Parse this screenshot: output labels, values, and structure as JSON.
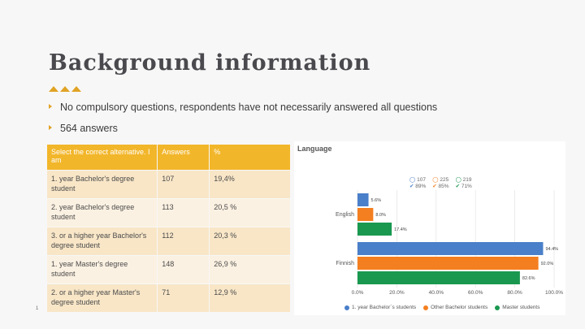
{
  "slide": {
    "title": "Background information",
    "bullets": [
      "No compulsory questions, respondents have not necessarily answered all questions",
      "564 answers"
    ],
    "page_number": "1"
  },
  "table": {
    "headers": [
      "Select the correct alternative. I am",
      "Answers",
      "%"
    ],
    "rows": [
      [
        "1. year Bachelor's degree student",
        "107",
        "19,4%"
      ],
      [
        "2. year Bachelor's degree student",
        "113",
        "20,5 %"
      ],
      [
        "3. or a higher year Bachelor's degree student",
        "112",
        "20,3 %"
      ],
      [
        "1. year Master's degree student",
        "148",
        "26,9 %"
      ],
      [
        "2. or a higher year Master's degree student",
        "71",
        "12,9 %"
      ]
    ]
  },
  "chart_data": {
    "type": "bar",
    "orientation": "horizontal",
    "title": "Language",
    "categories": [
      "English",
      "Finnish"
    ],
    "series": [
      {
        "name": "1. year Bachelor´s students",
        "color": "#4a7fc9",
        "values": [
          5.6,
          94.4
        ],
        "labels": [
          "5.6%",
          "94.4%"
        ]
      },
      {
        "name": "Other Bachelor students",
        "color": "#f47f20",
        "values": [
          8.0,
          92.0
        ],
        "labels": [
          "8.0%",
          "92.0%"
        ]
      },
      {
        "name": "Master students",
        "color": "#1a9850",
        "values": [
          17.4,
          82.6
        ],
        "labels": [
          "17.4%",
          "82.6%"
        ]
      }
    ],
    "xlim": [
      0,
      100
    ],
    "xticks": [
      "0.0%",
      "20.0%",
      "40.0%",
      "60.0%",
      "80.0%",
      "100.0%"
    ],
    "grid": true,
    "legend": "bottom",
    "summary": [
      {
        "count": "107",
        "pct": "89%",
        "color": "#4a7fc9"
      },
      {
        "count": "225",
        "pct": "85%",
        "color": "#f47f20"
      },
      {
        "count": "219",
        "pct": "71%",
        "color": "#1a9850"
      }
    ]
  }
}
